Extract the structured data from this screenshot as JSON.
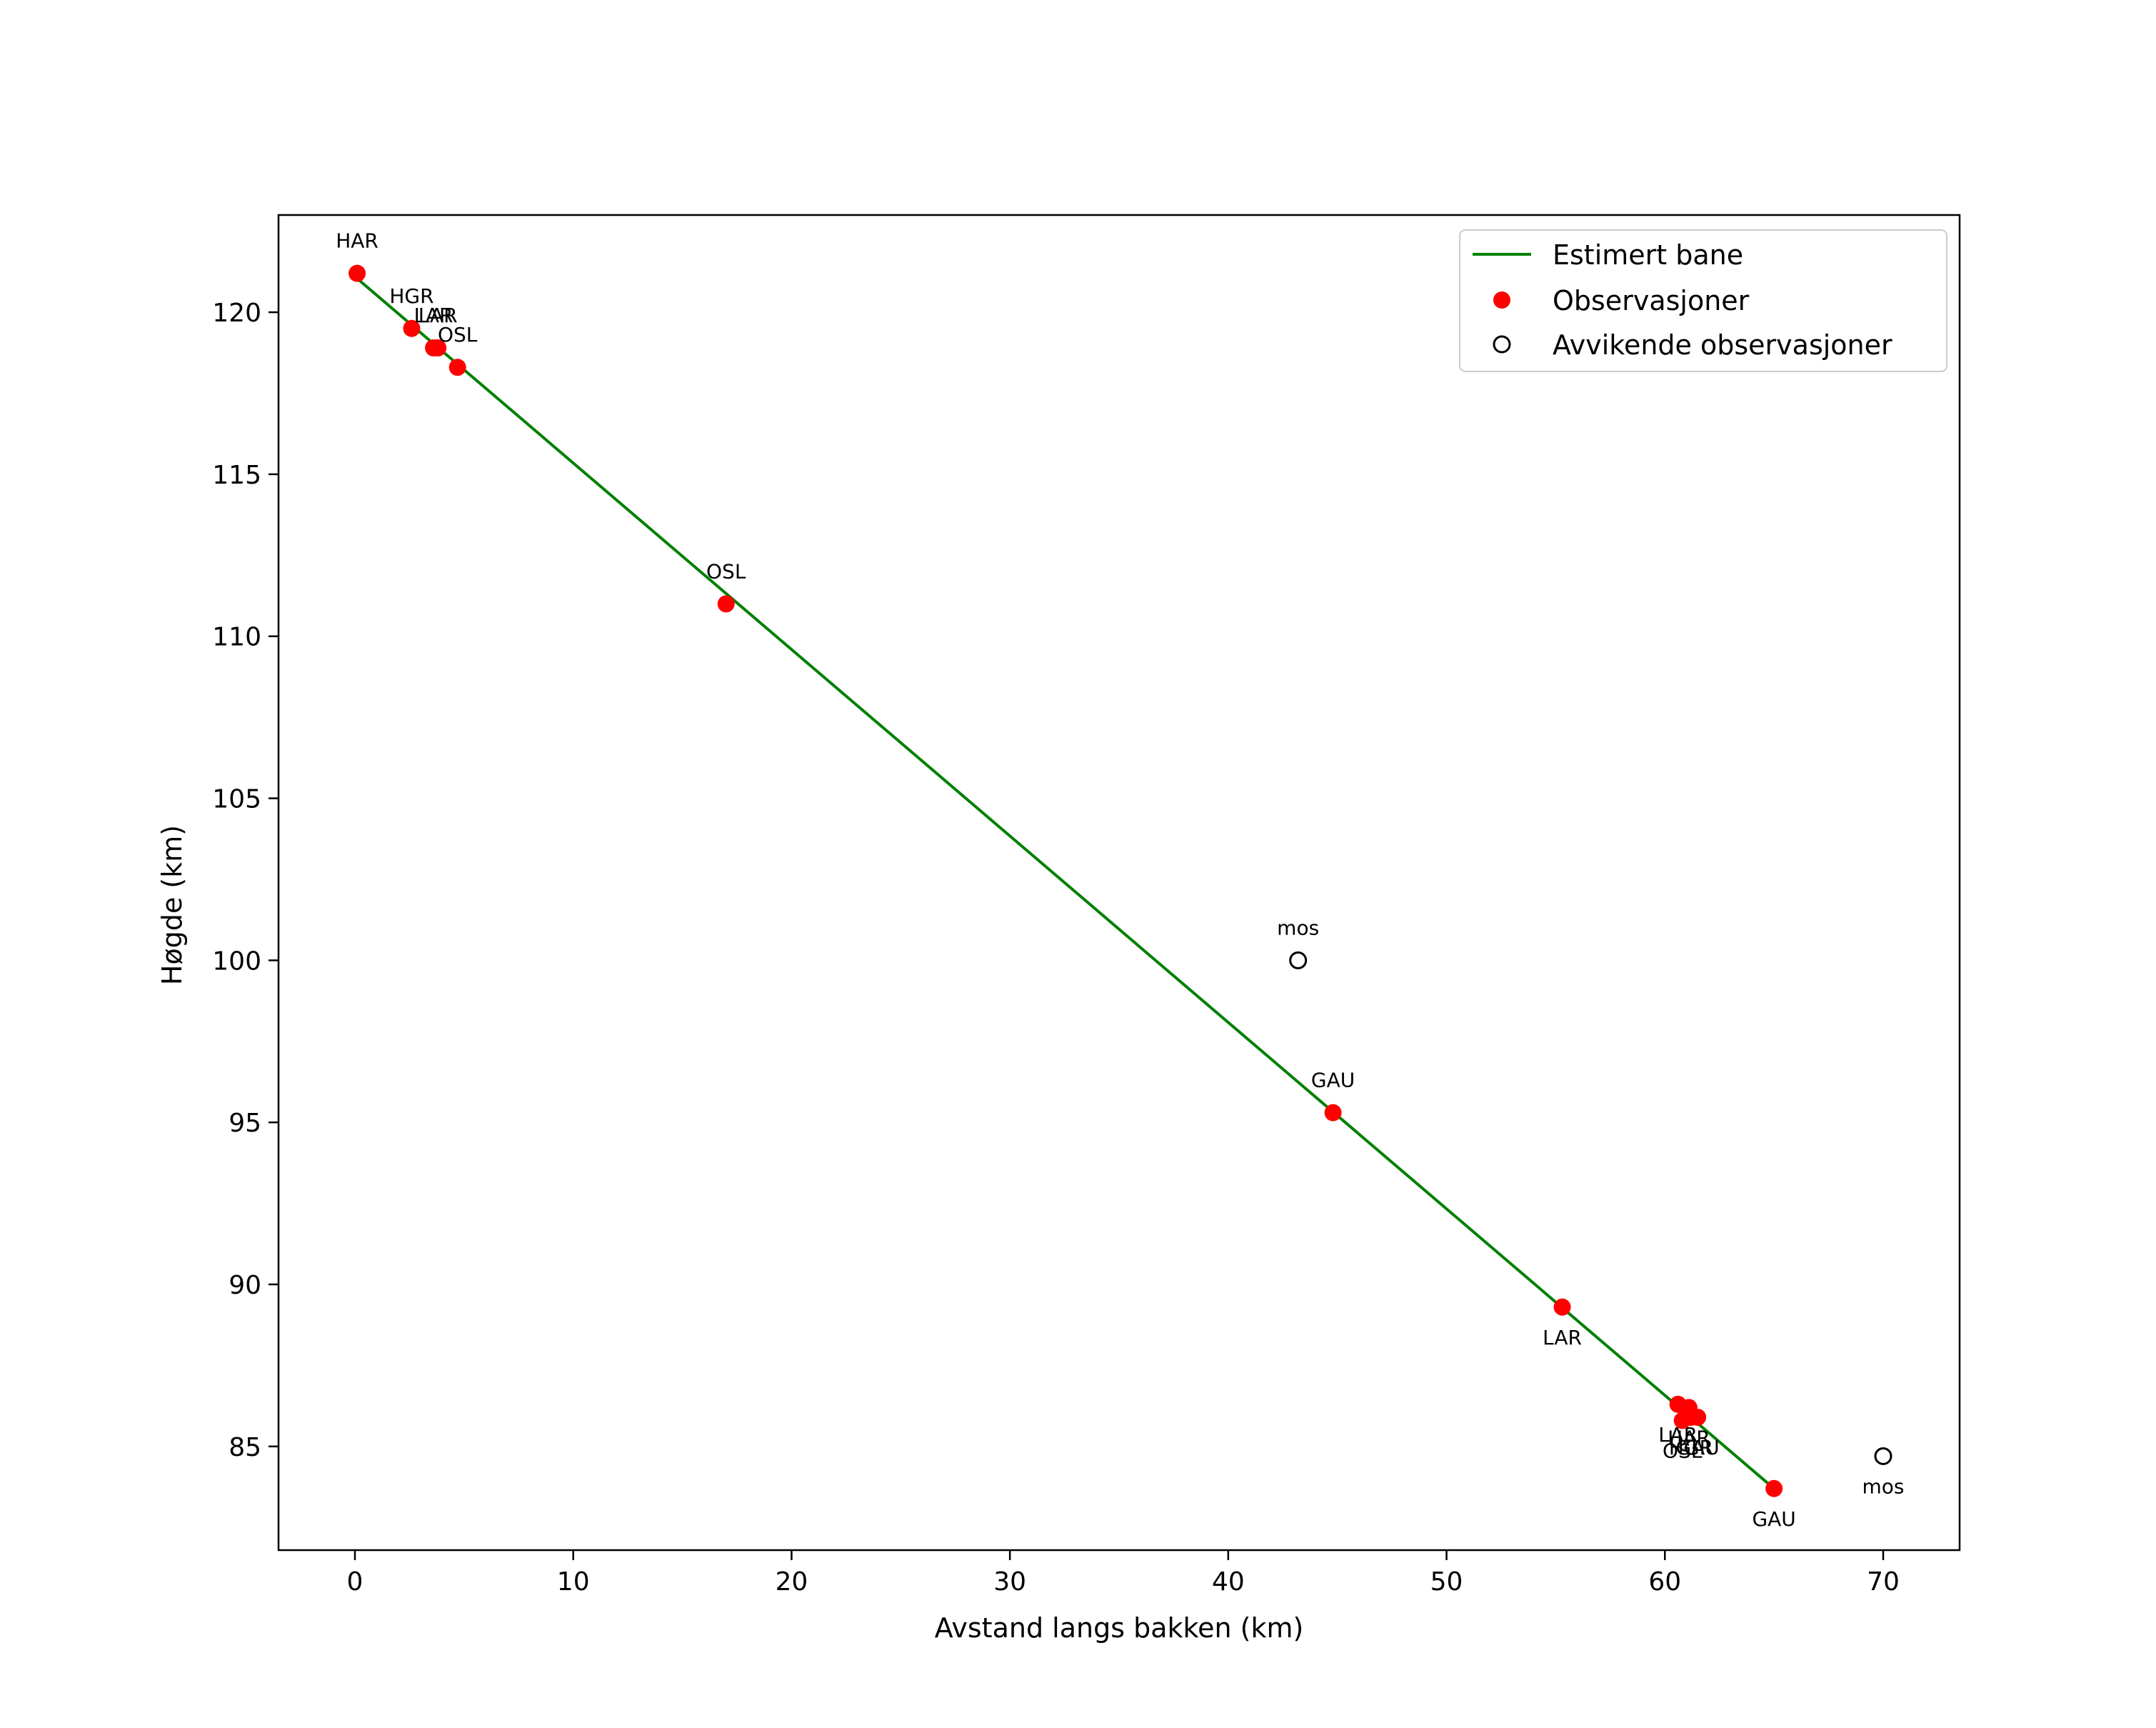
{
  "chart_data": {
    "type": "scatter",
    "title": "",
    "xlabel": "Avstand langs bakken (km)",
    "ylabel": "Høgde (km)",
    "xlim": [
      -3.5,
      73.5
    ],
    "ylim": [
      81.8,
      123.0
    ],
    "xticks": [
      0,
      10,
      20,
      30,
      40,
      50,
      60,
      70
    ],
    "yticks": [
      85,
      90,
      95,
      100,
      105,
      110,
      115,
      120
    ],
    "legend_position": "top-right",
    "colors": {
      "line": "#008000",
      "observations": "#ff0000",
      "outliers_edge": "#000000",
      "frame": "#000000"
    },
    "series": [
      {
        "name": "Estimert bane",
        "kind": "line",
        "x": [
          0.0,
          65.0
        ],
        "y": [
          121.1,
          83.7
        ]
      },
      {
        "name": "Observasjoner",
        "kind": "points",
        "points": [
          {
            "x": 0.1,
            "y": 121.2,
            "label": "HAR",
            "label_pos": "above"
          },
          {
            "x": 2.6,
            "y": 119.5,
            "label": "HGR",
            "label_pos": "above"
          },
          {
            "x": 3.6,
            "y": 118.9,
            "label": "LAR",
            "label_pos": "above"
          },
          {
            "x": 3.8,
            "y": 118.9,
            "label": "LAR",
            "label_pos": "above"
          },
          {
            "x": 4.7,
            "y": 118.3,
            "label": "OSL",
            "label_pos": "above"
          },
          {
            "x": 17.0,
            "y": 111.0,
            "label": "OSL",
            "label_pos": "above"
          },
          {
            "x": 44.8,
            "y": 95.3,
            "label": "GAU",
            "label_pos": "above"
          },
          {
            "x": 55.3,
            "y": 89.3,
            "label": "LAR",
            "label_pos": "below"
          },
          {
            "x": 60.6,
            "y": 86.3,
            "label": "LAR",
            "label_pos": "below"
          },
          {
            "x": 61.1,
            "y": 86.2,
            "label": "HAR",
            "label_pos": "below"
          },
          {
            "x": 60.8,
            "y": 85.8,
            "label": "OSL",
            "label_pos": "below"
          },
          {
            "x": 61.2,
            "y": 85.9,
            "label": "HGR",
            "label_pos": "below"
          },
          {
            "x": 61.5,
            "y": 85.9,
            "label": "GAU",
            "label_pos": "below"
          },
          {
            "x": 65.0,
            "y": 83.7,
            "label": "GAU",
            "label_pos": "below"
          }
        ]
      },
      {
        "name": "Avvikende observasjoner",
        "kind": "points",
        "points": [
          {
            "x": 43.2,
            "y": 100.0,
            "label": "mos",
            "label_pos": "above"
          },
          {
            "x": 70.0,
            "y": 84.7,
            "label": "mos",
            "label_pos": "below"
          }
        ]
      }
    ]
  }
}
